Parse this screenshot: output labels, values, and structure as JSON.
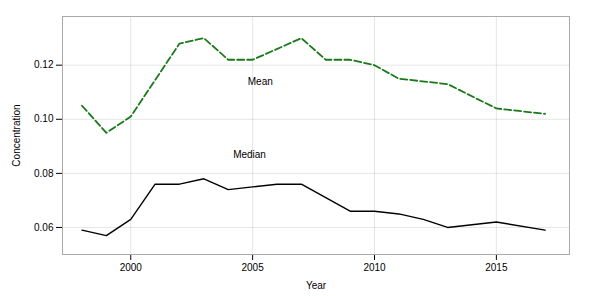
{
  "chart_data": {
    "type": "line",
    "xlabel": "Year",
    "ylabel": "Concentration",
    "series": [
      {
        "name": "Median",
        "color": "#000000",
        "line_style": "solid",
        "x": [
          1998,
          1999,
          2000,
          2001,
          2002,
          2003,
          2004,
          2005,
          2006,
          2007,
          2008,
          2009,
          2010,
          2011,
          2012,
          2013,
          2015,
          2017
        ],
        "values": [
          0.059,
          0.057,
          0.063,
          0.076,
          0.076,
          0.078,
          0.074,
          0.075,
          0.076,
          0.076,
          0.071,
          0.066,
          0.066,
          0.065,
          0.063,
          0.06,
          0.062,
          0.059
        ]
      },
      {
        "name": "Mean",
        "color": "#1a7a1a",
        "line_style": "dashed",
        "x": [
          1998,
          1999,
          2000,
          2002,
          2003,
          2004,
          2005,
          2007,
          2008,
          2009,
          2010,
          2011,
          2013,
          2015,
          2017
        ],
        "values": [
          0.105,
          0.095,
          0.101,
          0.128,
          0.13,
          0.122,
          0.122,
          0.13,
          0.122,
          0.122,
          0.12,
          0.115,
          0.113,
          0.104,
          0.102
        ]
      }
    ],
    "annotations": [
      {
        "text": "Median",
        "x": 2004.2,
        "y": 0.087
      },
      {
        "text": "Mean",
        "x": 2004.8,
        "y": 0.114
      }
    ],
    "xlim": [
      1997.2,
      2018.0
    ],
    "ylim": [
      0.05,
      0.138
    ],
    "xticks": [
      2000,
      2005,
      2010,
      2015
    ],
    "yticks": [
      0.06,
      0.08,
      {
        "value": 0.1,
        "label": "0.10"
      },
      0.12
    ],
    "grid": true
  }
}
